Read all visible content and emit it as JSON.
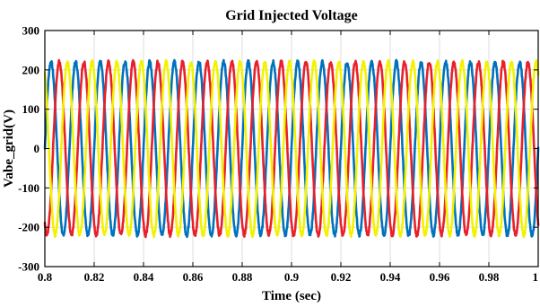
{
  "chart_data": {
    "type": "line",
    "title": "Grid Injected Voltage",
    "xlabel": "Time (sec)",
    "ylabel": "Vabe_grid(V)",
    "xlim": [
      0.8,
      1.0
    ],
    "ylim": [
      -300,
      300
    ],
    "x_ticks": [
      0.8,
      0.82,
      0.84,
      0.86,
      0.88,
      0.9,
      0.92,
      0.94,
      0.96,
      0.98,
      1
    ],
    "x_tick_labels": [
      "0.8",
      "0.82",
      "0.84",
      "0.86",
      "0.88",
      "0.9",
      "0.92",
      "0.94",
      "0.96",
      "0.98",
      "1"
    ],
    "y_ticks": [
      -300,
      -200,
      -100,
      0,
      100,
      200,
      300
    ],
    "y_tick_labels": [
      "-300",
      "-200",
      "-100",
      "0",
      "100",
      "200",
      "300"
    ],
    "grid": true,
    "legend": "none",
    "amplitude": 220,
    "frequency_hz": 100,
    "series": [
      {
        "color": "#0072BD",
        "phase_deg": 0,
        "x": [
          0.8,
          0.8025,
          0.805,
          0.8075,
          0.81,
          0.8125,
          0.815,
          0.8175,
          0.82,
          0.8225,
          0.825,
          0.8275,
          0.83,
          0.8325,
          0.835,
          0.8375,
          0.84,
          0.8425,
          0.845,
          0.8475,
          0.85,
          0.8525,
          0.855,
          0.8575,
          0.86,
          0.8625,
          0.865,
          0.8675,
          0.87,
          0.8725,
          0.875,
          0.8775,
          0.88,
          0.8825,
          0.885,
          0.8875,
          0.89,
          0.8925,
          0.895,
          0.8975,
          0.9,
          0.9025,
          0.905,
          0.9075,
          0.91,
          0.9125,
          0.915,
          0.9175,
          0.92,
          0.9225,
          0.925,
          0.9275,
          0.93,
          0.9325,
          0.935,
          0.9375,
          0.94,
          0.9425,
          0.945,
          0.9475,
          0.95,
          0.9525,
          0.955,
          0.9575,
          0.96,
          0.9625,
          0.965,
          0.9675,
          0.97,
          0.9725,
          0.975,
          0.9775,
          0.98,
          0.9825,
          0.985,
          0.9875,
          0.99,
          0.9925,
          0.995,
          0.9975,
          1.0
        ],
        "y": [
          0,
          220,
          0,
          -220,
          0,
          220,
          0,
          -220,
          0,
          220,
          0,
          -220,
          0,
          220,
          0,
          -220,
          0,
          220,
          0,
          -220,
          0,
          220,
          0,
          -220,
          0,
          220,
          0,
          -220,
          0,
          220,
          0,
          -220,
          0,
          220,
          0,
          -220,
          0,
          220,
          0,
          -220,
          0,
          220,
          0,
          -220,
          0,
          220,
          0,
          -220,
          0,
          220,
          0,
          -220,
          0,
          220,
          0,
          -220,
          0,
          220,
          0,
          -220,
          0,
          220,
          0,
          -220,
          0,
          220,
          0,
          -220,
          0,
          220,
          0,
          -220,
          0,
          220,
          0,
          -220,
          0,
          220,
          0,
          -220,
          0
        ]
      },
      {
        "color": "#E8202A",
        "phase_deg": -120,
        "x": [
          0.8,
          0.8025,
          0.805,
          0.8075,
          0.81,
          0.8125,
          0.815,
          0.8175,
          0.82,
          0.8225,
          0.825,
          0.8275,
          0.83,
          0.8325,
          0.835,
          0.8375,
          0.84,
          0.8425,
          0.845,
          0.8475,
          0.85,
          0.8525,
          0.855,
          0.8575,
          0.86,
          0.8625,
          0.865,
          0.8675,
          0.87,
          0.8725,
          0.875,
          0.8775,
          0.88,
          0.8825,
          0.885,
          0.8875,
          0.89,
          0.8925,
          0.895,
          0.8975,
          0.9,
          0.9025,
          0.905,
          0.9075,
          0.91,
          0.9125,
          0.915,
          0.9175,
          0.92,
          0.9225,
          0.925,
          0.9275,
          0.93,
          0.9325,
          0.935,
          0.9375,
          0.94,
          0.9425,
          0.945,
          0.9475,
          0.95,
          0.9525,
          0.955,
          0.9575,
          0.96,
          0.9625,
          0.965,
          0.9675,
          0.97,
          0.9725,
          0.975,
          0.9775,
          0.98,
          0.9825,
          0.985,
          0.9875,
          0.99,
          0.9925,
          0.995,
          0.9975,
          1.0
        ],
        "y": [
          -190.5,
          110,
          190.5,
          -110,
          -190.5,
          110,
          190.5,
          -110,
          -190.5,
          110,
          190.5,
          -110,
          -190.5,
          110,
          190.5,
          -110,
          -190.5,
          110,
          190.5,
          -110,
          -190.5,
          110,
          190.5,
          -110,
          -190.5,
          110,
          190.5,
          -110,
          -190.5,
          110,
          190.5,
          -110,
          -190.5,
          110,
          190.5,
          -110,
          -190.5,
          110,
          190.5,
          -110,
          -190.5,
          110,
          190.5,
          -110,
          -190.5,
          110,
          190.5,
          -110,
          -190.5,
          110,
          190.5,
          -110,
          -190.5,
          110,
          190.5,
          -110,
          -190.5,
          110,
          190.5,
          -110,
          -190.5,
          110,
          190.5,
          -110,
          -190.5,
          110,
          190.5,
          -110,
          -190.5,
          110,
          190.5,
          -110,
          -190.5,
          110,
          190.5,
          -110,
          -190.5,
          110,
          190.5,
          -110,
          -190.5
        ]
      },
      {
        "color": "#F2F200",
        "phase_deg": 120,
        "x": [
          0.8,
          0.8025,
          0.805,
          0.8075,
          0.81,
          0.8125,
          0.815,
          0.8175,
          0.82,
          0.8225,
          0.825,
          0.8275,
          0.83,
          0.8325,
          0.835,
          0.8375,
          0.84,
          0.8425,
          0.845,
          0.8475,
          0.85,
          0.8525,
          0.855,
          0.8575,
          0.86,
          0.8625,
          0.865,
          0.8675,
          0.87,
          0.8725,
          0.875,
          0.8775,
          0.88,
          0.8825,
          0.885,
          0.8875,
          0.89,
          0.8925,
          0.895,
          0.8975,
          0.9,
          0.9025,
          0.905,
          0.9075,
          0.91,
          0.9125,
          0.915,
          0.9175,
          0.92,
          0.9225,
          0.925,
          0.9275,
          0.93,
          0.9325,
          0.935,
          0.9375,
          0.94,
          0.9425,
          0.945,
          0.9475,
          0.95,
          0.9525,
          0.955,
          0.9575,
          0.96,
          0.9625,
          0.965,
          0.9675,
          0.97,
          0.9725,
          0.975,
          0.9775,
          0.98,
          0.9825,
          0.985,
          0.9875,
          0.99,
          0.9925,
          0.995,
          0.9975,
          1.0
        ],
        "y": [
          190.5,
          110,
          -190.5,
          -110,
          190.5,
          110,
          -190.5,
          -110,
          190.5,
          110,
          -190.5,
          -110,
          190.5,
          110,
          -190.5,
          -110,
          190.5,
          110,
          -190.5,
          -110,
          190.5,
          110,
          -190.5,
          -110,
          190.5,
          110,
          -190.5,
          -110,
          190.5,
          110,
          -190.5,
          -110,
          190.5,
          110,
          -190.5,
          -110,
          190.5,
          110,
          -190.5,
          -110,
          190.5,
          110,
          -190.5,
          -110,
          190.5,
          110,
          -190.5,
          -110,
          190.5,
          110,
          -190.5,
          -110,
          190.5,
          110,
          -190.5,
          -110,
          190.5,
          110,
          -190.5,
          -110,
          190.5,
          110,
          -190.5,
          -110,
          190.5,
          110,
          -190.5,
          -110,
          190.5,
          110,
          -190.5,
          -110,
          190.5,
          110,
          -190.5,
          -110,
          190.5,
          110,
          -190.5,
          -110,
          190.5
        ]
      }
    ]
  }
}
